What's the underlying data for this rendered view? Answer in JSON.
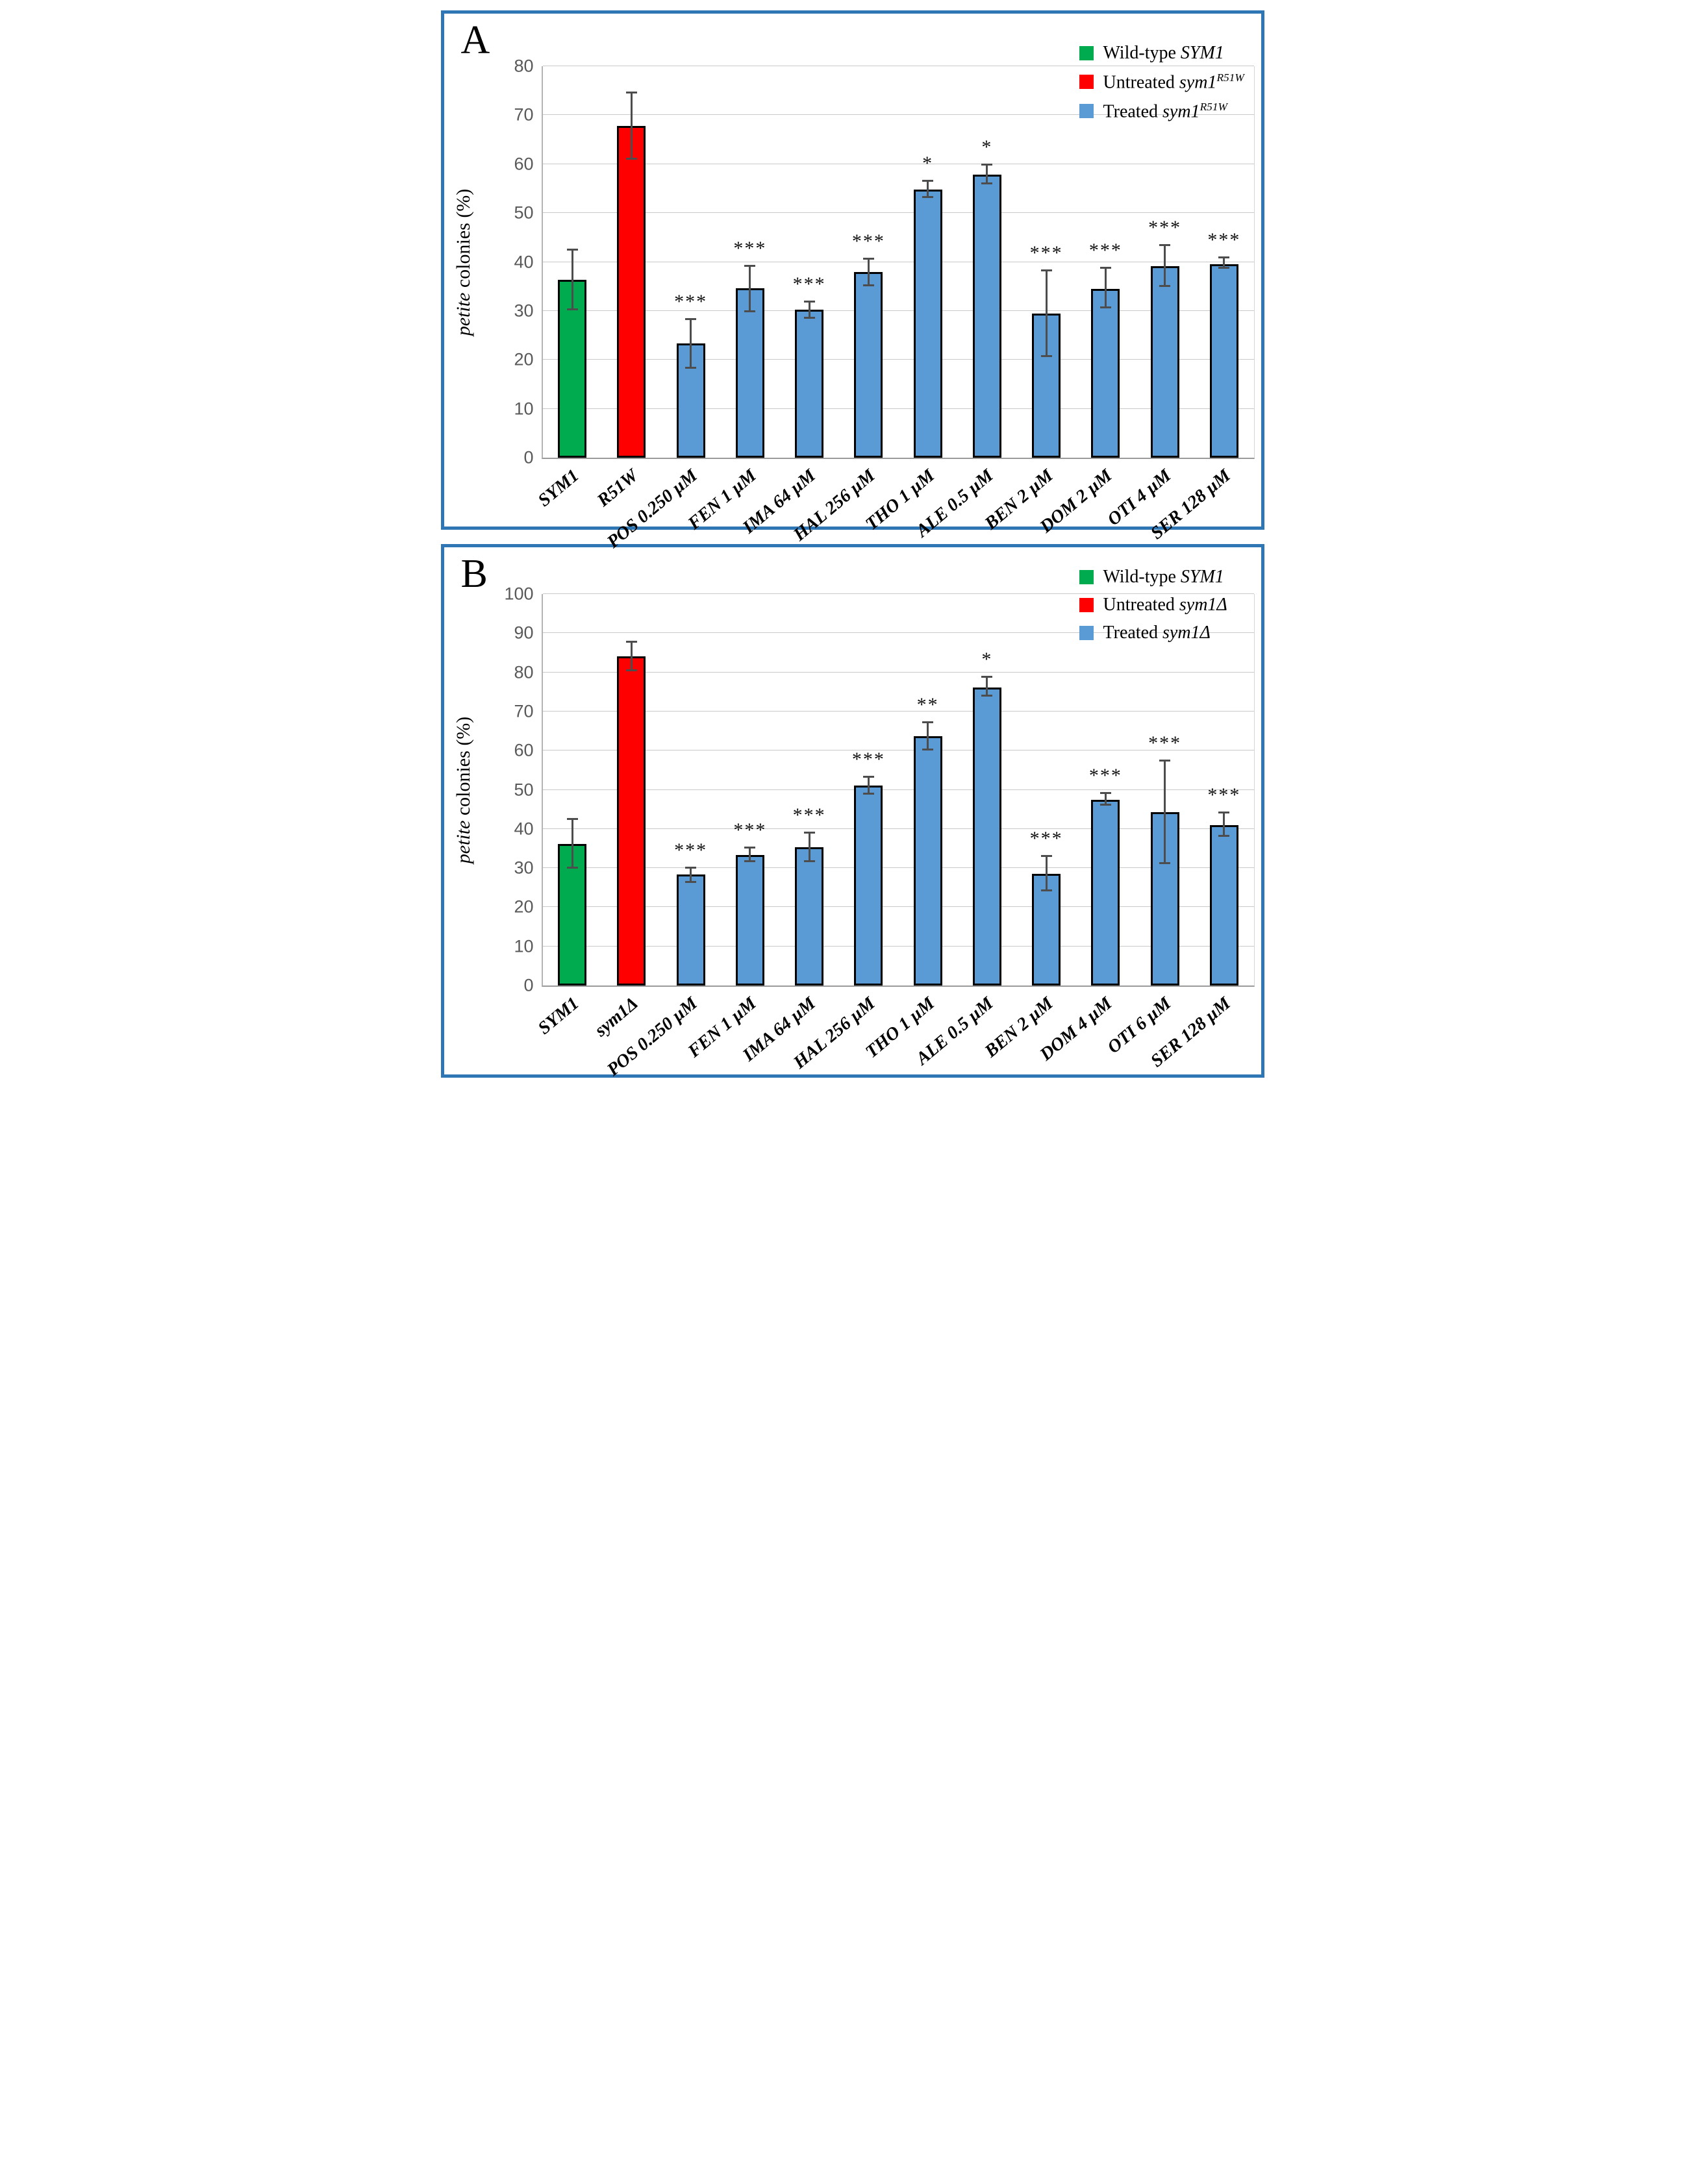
{
  "figure": {
    "background": "#ffffff",
    "frame_color": "#2f76b5",
    "gridline_color": "#c9c9c9",
    "error_bar_color": "#4d4d4d",
    "bar_border_color": "#000000"
  },
  "chart_data": [
    {
      "type": "bar",
      "panel_letter": "A",
      "ylabel_italic": "petite",
      "ylabel_rest": " colonies (%)",
      "ylim": [
        0,
        80
      ],
      "yticks": [
        0,
        10,
        20,
        30,
        40,
        50,
        60,
        70,
        80
      ],
      "grid": true,
      "legend_position": "top-right",
      "legend": [
        {
          "prefix": "Wild-type ",
          "gene": "SYM1",
          "sup": "",
          "color": "#00ab50"
        },
        {
          "prefix": "Untreated ",
          "gene": "sym1",
          "sup": "R51W",
          "color": "#ff0000"
        },
        {
          "prefix": "Treated ",
          "gene": "sym1",
          "sup": "R51W",
          "color": "#5b9bd5"
        }
      ],
      "categories": [
        "SYM1",
        "R51W",
        "POS 0.250 µM",
        "FEN 1 µM",
        "IMA 64 µM",
        "HAL 256 µM",
        "THO 1 µM",
        "ALE 0.5 µM",
        "BEN 2 µM",
        "DOM 2 µM",
        "OTI 4 µM",
        "SER 128 µM"
      ],
      "series": [
        {
          "name": "petite colonies (%)",
          "values": [
            36.3,
            67.8,
            23.3,
            34.6,
            30.2,
            37.9,
            54.8,
            57.9,
            29.5,
            34.5,
            39.2,
            39.6
          ],
          "error_top": [
            42.4,
            74.6,
            28.2,
            39.2,
            31.9,
            40.6,
            56.5,
            59.9,
            38.2,
            38.8,
            43.4,
            40.8
          ],
          "error_bottom": [
            30.2,
            61.0,
            18.3,
            29.9,
            28.5,
            35.2,
            53.2,
            56.0,
            20.7,
            30.6,
            35.0,
            38.8
          ],
          "significance": [
            "",
            "",
            "***",
            "***",
            "***",
            "***",
            "*",
            "*",
            "***",
            "***",
            "***",
            "***"
          ],
          "bar_colors": [
            "#00ab50",
            "#ff0000",
            "#5b9bd5",
            "#5b9bd5",
            "#5b9bd5",
            "#5b9bd5",
            "#5b9bd5",
            "#5b9bd5",
            "#5b9bd5",
            "#5b9bd5",
            "#5b9bd5",
            "#5b9bd5"
          ]
        }
      ]
    },
    {
      "type": "bar",
      "panel_letter": "B",
      "ylabel_italic": "petite",
      "ylabel_rest": " colonies (%)",
      "ylim": [
        0,
        100
      ],
      "yticks": [
        0,
        10,
        20,
        30,
        40,
        50,
        60,
        70,
        80,
        90,
        100
      ],
      "grid": true,
      "legend_position": "top-right",
      "legend": [
        {
          "prefix": "Wild-type ",
          "gene": "SYM1",
          "sup": "",
          "color": "#00ab50"
        },
        {
          "prefix": "Untreated ",
          "gene": "sym1Δ",
          "sup": "",
          "color": "#ff0000"
        },
        {
          "prefix": "Treated ",
          "gene": "sym1Δ",
          "sup": "",
          "color": "#5b9bd5"
        }
      ],
      "categories": [
        "SYM1",
        "sym1Δ",
        "POS 0.250 µM",
        "FEN 1 µM",
        "IMA 64 µM",
        "HAL 256 µM",
        "THO 1 µM",
        "ALE 0.5 µM",
        "BEN 2 µM",
        "DOM 4 µM",
        "OTI 6 µM",
        "SER 128 µM"
      ],
      "series": [
        {
          "name": "petite colonies (%)",
          "values": [
            36.2,
            84.1,
            28.4,
            33.4,
            35.3,
            51.1,
            63.7,
            76.2,
            28.5,
            47.5,
            44.3,
            41.0
          ],
          "error_top": [
            42.4,
            87.8,
            30.0,
            35.2,
            39.0,
            53.2,
            67.2,
            78.7,
            33.0,
            49.1,
            57.3,
            44.1
          ],
          "error_bottom": [
            30.1,
            80.4,
            26.4,
            31.6,
            31.6,
            49.0,
            60.2,
            74.0,
            24.2,
            46.1,
            31.2,
            38.1
          ],
          "significance": [
            "",
            "",
            "***",
            "***",
            "***",
            "***",
            "**",
            "*",
            "***",
            "***",
            "***",
            "***"
          ],
          "bar_colors": [
            "#00ab50",
            "#ff0000",
            "#5b9bd5",
            "#5b9bd5",
            "#5b9bd5",
            "#5b9bd5",
            "#5b9bd5",
            "#5b9bd5",
            "#5b9bd5",
            "#5b9bd5",
            "#5b9bd5",
            "#5b9bd5"
          ]
        }
      ]
    }
  ]
}
